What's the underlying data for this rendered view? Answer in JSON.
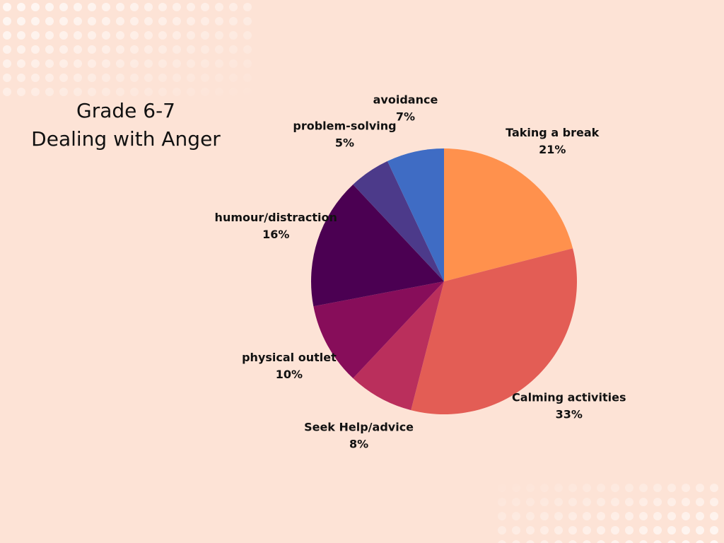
{
  "chart_data": {
    "type": "pie",
    "title": "Grade 6-7",
    "subtitle": "Dealing with Anger",
    "categories": [
      "Taking a break",
      "Calming activities",
      "Seek Help/advice",
      "physical outlet",
      "humour/distraction",
      "problem-solving",
      "avoidance"
    ],
    "values": [
      21,
      33,
      8,
      10,
      16,
      5,
      7
    ],
    "value_labels": [
      "21%",
      "33%",
      "8%",
      "10%",
      "16%",
      "5%",
      "7%"
    ],
    "colors": [
      "#ff914d",
      "#e35d55",
      "#ba2f5c",
      "#870d5a",
      "#4b0052",
      "#4c3a8a",
      "#3f6cc4"
    ]
  }
}
